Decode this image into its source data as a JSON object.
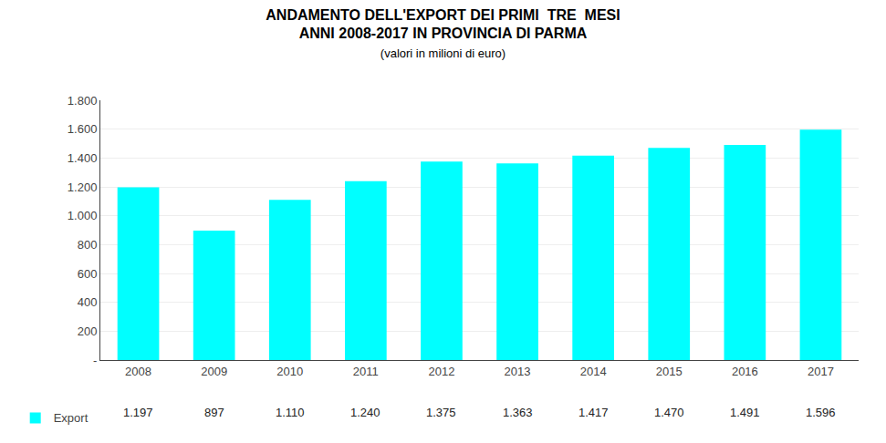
{
  "chart_data": {
    "type": "bar",
    "title": "ANDAMENTO DELL'EXPORT DEI PRIMI  TRE  MESI\nANNI 2008-2017 IN PROVINCIA DI PARMA",
    "subtitle": "(valori in milioni di euro)",
    "categories": [
      "2008",
      "2009",
      "2010",
      "2011",
      "2012",
      "2013",
      "2014",
      "2015",
      "2016",
      "2017"
    ],
    "series": [
      {
        "name": "Export",
        "color": "#00FFFF",
        "values": [
          1197,
          897,
          1110,
          1240,
          1375,
          1363,
          1417,
          1470,
          1491,
          1596
        ],
        "value_labels": [
          "1.197",
          "897",
          "1.110",
          "1.240",
          "1.375",
          "1.363",
          "1.417",
          "1.470",
          "1.491",
          "1.596"
        ]
      }
    ],
    "ylim": [
      0,
      1800
    ],
    "yticks": [
      {
        "value": 0,
        "label": "-"
      },
      200,
      400,
      600,
      800,
      {
        "value": 1000,
        "label": "1.000"
      },
      {
        "value": 1200,
        "label": "1.200"
      },
      {
        "value": 1400,
        "label": "1.400"
      },
      {
        "value": 1600,
        "label": "1.600"
      },
      {
        "value": 1800,
        "label": "1.800"
      }
    ],
    "grid": true,
    "legend": "bottom left"
  }
}
